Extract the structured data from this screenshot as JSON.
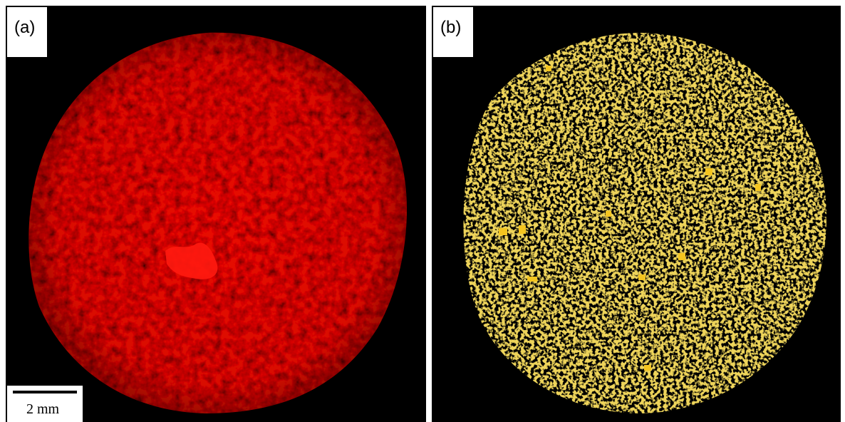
{
  "panels": [
    {
      "label": "(a)"
    },
    {
      "label": "(b)"
    }
  ],
  "scale_bar": {
    "label": "2 mm"
  }
}
